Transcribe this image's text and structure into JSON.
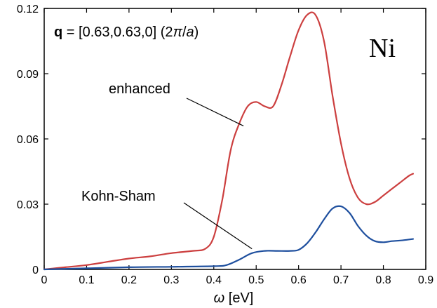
{
  "chart_data": {
    "type": "line",
    "title": "",
    "xlabel": {
      "symbol": "ω",
      "unit": " [eV]"
    },
    "ylabel": "",
    "xlim": [
      0,
      0.9
    ],
    "ylim": [
      0,
      0.12
    ],
    "x_ticks": [
      0,
      0.1,
      0.2,
      0.3,
      0.4,
      0.5,
      0.6,
      0.7,
      0.8,
      0.9
    ],
    "x_tick_labels": [
      "0",
      "0.1",
      "0.2",
      "0.3",
      "0.4",
      "0.5",
      "0.6",
      "0.7",
      "0.8",
      "0.9"
    ],
    "y_ticks": [
      0,
      0.03,
      0.06,
      0.09,
      0.12
    ],
    "y_tick_labels": [
      "0",
      "0.03",
      "0.06",
      "0.09",
      "0.12"
    ],
    "grid": false,
    "colors": {
      "enhanced": "#cc3f3f",
      "kohn_sham": "#1e4f9e",
      "axis": "#000000"
    },
    "series": [
      {
        "name": "enhanced",
        "x": [
          0,
          0.05,
          0.1,
          0.15,
          0.2,
          0.25,
          0.3,
          0.35,
          0.38,
          0.4,
          0.42,
          0.44,
          0.46,
          0.48,
          0.5,
          0.52,
          0.54,
          0.56,
          0.58,
          0.6,
          0.62,
          0.64,
          0.66,
          0.68,
          0.7,
          0.72,
          0.74,
          0.76,
          0.78,
          0.8,
          0.82,
          0.84,
          0.86,
          0.87
        ],
        "y": [
          0,
          0.001,
          0.002,
          0.0035,
          0.005,
          0.006,
          0.0075,
          0.0085,
          0.0095,
          0.015,
          0.032,
          0.055,
          0.067,
          0.075,
          0.077,
          0.075,
          0.075,
          0.085,
          0.098,
          0.11,
          0.117,
          0.117,
          0.105,
          0.08,
          0.058,
          0.042,
          0.033,
          0.03,
          0.031,
          0.034,
          0.037,
          0.04,
          0.043,
          0.044
        ]
      },
      {
        "name": "Kohn-Sham",
        "x": [
          0,
          0.1,
          0.2,
          0.3,
          0.4,
          0.43,
          0.46,
          0.49,
          0.52,
          0.55,
          0.58,
          0.6,
          0.62,
          0.64,
          0.66,
          0.68,
          0.7,
          0.72,
          0.74,
          0.76,
          0.78,
          0.8,
          0.82,
          0.84,
          0.87
        ],
        "y": [
          0,
          0.0005,
          0.001,
          0.0012,
          0.0015,
          0.002,
          0.0045,
          0.0075,
          0.0085,
          0.0085,
          0.0085,
          0.009,
          0.012,
          0.017,
          0.023,
          0.028,
          0.029,
          0.026,
          0.02,
          0.0155,
          0.013,
          0.0125,
          0.013,
          0.0133,
          0.014
        ]
      }
    ],
    "annotations": [
      {
        "id": "enhanced",
        "text": "enhanced",
        "target": [
          0.47,
          0.066
        ]
      },
      {
        "id": "kohn_sham",
        "text": "Kohn-Sham",
        "target": [
          0.49,
          0.0095
        ]
      }
    ],
    "q_label": {
      "bold": "q",
      "text": " = [0.63,0.63,0] (2",
      "italic_pi": "π",
      "slash": "/",
      "italic_a": "a",
      "close": ")"
    },
    "material_label": "Ni"
  }
}
